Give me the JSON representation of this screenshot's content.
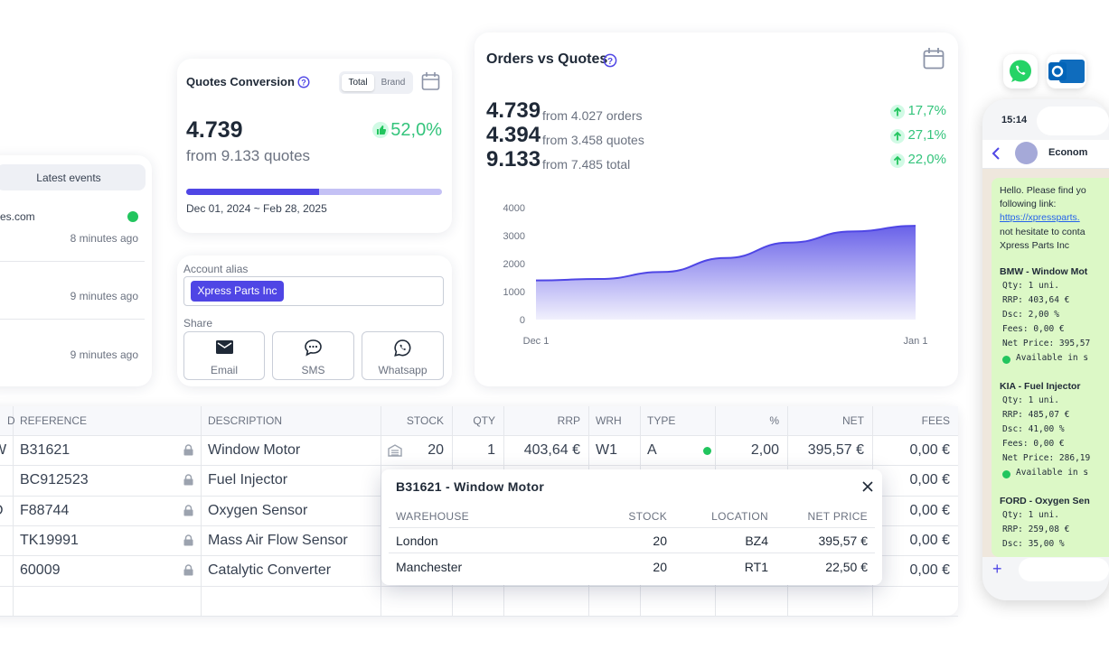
{
  "latest_events": {
    "title": "Latest events",
    "items": [
      {
        "text": "es.com",
        "time": "8 minutes ago"
      },
      {
        "text": null,
        "time": "9 minutes ago"
      },
      {
        "text": null,
        "time": "9 minutes ago"
      }
    ]
  },
  "quotes_conversion": {
    "title": "Quotes Conversion",
    "toggle": [
      "Total",
      "Brand"
    ],
    "value": "4.739",
    "subtitle": "from 9.133 quotes",
    "change": {
      "value": 52.0,
      "label": "52,0%"
    },
    "date_range": "Dec 01, 2024 ~ Feb 28, 2025"
  },
  "account": {
    "alias_label": "Account alias",
    "alias": "Xpress Parts Inc",
    "share_label": "Share",
    "buttons": [
      "Email",
      "SMS",
      "Whatsapp"
    ]
  },
  "orders": {
    "title": "Orders vs Quotes",
    "rows": [
      {
        "value": "4.739",
        "text": "from 4.027 orders",
        "change": "17,7%"
      },
      {
        "value": "4.394",
        "text": "from 3.458 quotes",
        "change": "27,1%"
      },
      {
        "value": "9.133",
        "text": "from 7.485 total",
        "change": "22,0%"
      }
    ]
  },
  "chart_data": {
    "type": "area",
    "categories": [
      "Dec 1",
      null,
      null,
      null,
      null,
      null,
      "Jan 1"
    ],
    "values": [
      1400,
      1450,
      1700,
      2200,
      2750,
      3150,
      3350
    ],
    "color": "#4f46e5",
    "ylim": [
      0,
      4000
    ],
    "yticks": [
      0,
      1000,
      2000,
      3000,
      4000
    ]
  },
  "table": {
    "headers": [
      "D",
      "REFERENCE",
      "DESCRIPTION",
      "STOCK",
      "QTY",
      "RRP",
      "WRH",
      "TYPE",
      "%",
      "NET",
      "FEES"
    ],
    "rows": [
      [
        "W",
        "B31621",
        "Window Motor",
        "20",
        "1",
        "403,64 €",
        "W1",
        "A",
        "2,00",
        "395,57 €",
        "0,00 €"
      ],
      [
        null,
        "BC912523",
        "Fuel Injector",
        null,
        null,
        null,
        null,
        null,
        null,
        null,
        "0,00 €"
      ],
      [
        "D",
        "F88744",
        "Oxygen Sensor",
        null,
        null,
        null,
        null,
        null,
        null,
        null,
        "0,00 €"
      ],
      [
        null,
        "TK19991",
        "Mass Air Flow Sensor",
        null,
        null,
        null,
        null,
        null,
        null,
        null,
        "0,00 €"
      ],
      [
        null,
        "60009",
        "Catalytic Converter",
        null,
        null,
        null,
        null,
        null,
        null,
        null,
        "0,00 €"
      ]
    ]
  },
  "popup": {
    "title": "B31621 - Window Motor",
    "headers": [
      "WAREHOUSE",
      "STOCK",
      "LOCATION",
      "NET PRICE"
    ],
    "rows": [
      [
        "London",
        "20",
        "BZ4",
        "395,57 €"
      ],
      [
        "Manchester",
        "20",
        "RT1",
        "22,50 €"
      ]
    ]
  },
  "phone": {
    "time": "15:14",
    "contact": "Econom",
    "intro": [
      "Hello. Please find yo",
      "following link:",
      "https://xpressparts.",
      "not hesitate to conta",
      "Xpress Parts Inc"
    ],
    "items": [
      {
        "title": "BMW - Window Mot",
        "lines": [
          "Qty: 1 uni.",
          "RRP: 403,64 €",
          "Dsc: 2,00 %",
          "Fees: 0,00 €",
          "Net Price: 395,57",
          "Available in s"
        ]
      },
      {
        "title": "KIA - Fuel Injector",
        "lines": [
          "Qty: 1 uni.",
          "RRP: 485,07 €",
          "Dsc: 41,00 %",
          "Fees: 0,00 €",
          "Net Price: 286,19",
          "Available in s"
        ]
      },
      {
        "title": "FORD - Oxygen Sen",
        "lines": [
          "Qty: 1 uni.",
          "RRP: 259,08 €",
          "Dsc: 35,00 %"
        ]
      }
    ]
  }
}
